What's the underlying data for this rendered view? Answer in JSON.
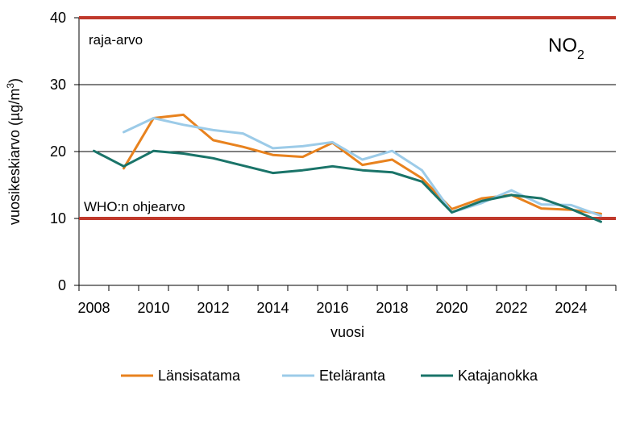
{
  "chart_data": {
    "type": "line",
    "xlabel": "vuosi",
    "ylabel": "vuosikeskiarvo (µg/m³)",
    "ylabel_parts": {
      "main": "vuosikeskiarvo (µg/m",
      "sup": "3",
      "end": ")"
    },
    "xlim": [
      2007.5,
      2025.5
    ],
    "ylim": [
      0,
      40
    ],
    "x_ticks": [
      2008,
      2010,
      2012,
      2014,
      2016,
      2018,
      2020,
      2022,
      2024
    ],
    "y_ticks": [
      0,
      10,
      20,
      30,
      40
    ],
    "gridlines_y": [
      20,
      30
    ],
    "pollutant": {
      "main": "NO",
      "sub": "2"
    },
    "legend_position": "bottom",
    "reference_lines": [
      {
        "label": "raja-arvo",
        "value": 40,
        "color": "#c0392b"
      },
      {
        "label": "WHO:n ohjearvo",
        "value": 10,
        "color": "#c0392b"
      }
    ],
    "series": [
      {
        "name": "Länsisatama",
        "color": "#e8821e",
        "x": [
          2009,
          2010,
          2011,
          2012,
          2013,
          2014,
          2015,
          2016,
          2017,
          2018,
          2019,
          2020,
          2021,
          2022,
          2023,
          2024,
          2025
        ],
        "values": [
          17.5,
          25.0,
          25.5,
          21.7,
          20.7,
          19.5,
          19.2,
          21.3,
          18.0,
          18.8,
          16.0,
          11.4,
          13.0,
          13.5,
          11.5,
          11.3,
          10.7
        ]
      },
      {
        "name": "Eteläranta",
        "color": "#9ccbe8",
        "x": [
          2009,
          2010,
          2011,
          2012,
          2013,
          2014,
          2015,
          2016,
          2017,
          2018,
          2019,
          2020,
          2021,
          2022,
          2023,
          2024,
          2025
        ],
        "values": [
          22.9,
          25.0,
          24.0,
          23.2,
          22.7,
          20.5,
          20.8,
          21.4,
          18.8,
          20.1,
          17.2,
          10.9,
          12.3,
          14.2,
          12.1,
          12.0,
          10.4
        ]
      },
      {
        "name": "Katajanokka",
        "color": "#1a7469",
        "x": [
          2008,
          2009,
          2010,
          2011,
          2012,
          2013,
          2014,
          2015,
          2016,
          2017,
          2018,
          2019,
          2020,
          2021,
          2022,
          2023,
          2024,
          2025
        ],
        "values": [
          20.1,
          17.8,
          20.1,
          19.7,
          19.0,
          17.9,
          16.8,
          17.2,
          17.8,
          17.2,
          16.9,
          15.5,
          10.9,
          12.6,
          13.5,
          13.0,
          11.4,
          9.5
        ]
      }
    ]
  }
}
